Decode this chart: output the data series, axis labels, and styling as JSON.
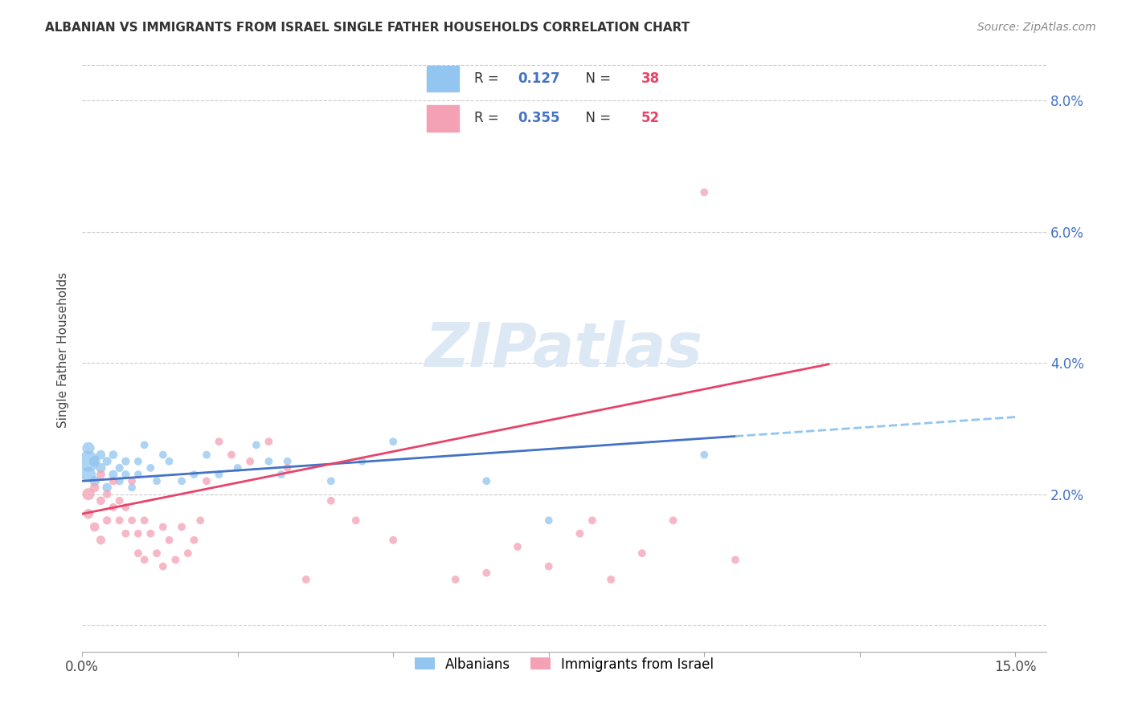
{
  "title": "ALBANIAN VS IMMIGRANTS FROM ISRAEL SINGLE FATHER HOUSEHOLDS CORRELATION CHART",
  "source": "Source: ZipAtlas.com",
  "ylabel": "Single Father Households",
  "xlim": [
    0.0,
    0.155
  ],
  "ylim": [
    -0.004,
    0.088
  ],
  "xticks": [
    0.0,
    0.025,
    0.05,
    0.075,
    0.1,
    0.125,
    0.15
  ],
  "xticklabels": [
    "0.0%",
    "",
    "",
    "",
    "",
    "",
    "15.0%"
  ],
  "yticks": [
    0.0,
    0.02,
    0.04,
    0.06,
    0.08
  ],
  "yticklabels_right": [
    "",
    "2.0%",
    "4.0%",
    "6.0%",
    "8.0%"
  ],
  "legend_label1": "Albanians",
  "legend_label2": "Immigrants from Israel",
  "R1": "0.127",
  "N1": "38",
  "R2": "0.355",
  "N2": "52",
  "color_blue": "#92C5F0",
  "color_pink": "#F4A0B5",
  "color_trendline_blue": "#4472C4",
  "color_trendline_pink": "#E8436A",
  "watermark": "ZIPatlas",
  "albanian_x": [
    0.001,
    0.001,
    0.001,
    0.002,
    0.002,
    0.003,
    0.003,
    0.004,
    0.004,
    0.005,
    0.005,
    0.006,
    0.006,
    0.007,
    0.007,
    0.008,
    0.009,
    0.009,
    0.01,
    0.011,
    0.012,
    0.013,
    0.014,
    0.016,
    0.018,
    0.02,
    0.022,
    0.025,
    0.028,
    0.03,
    0.032,
    0.033,
    0.04,
    0.045,
    0.05,
    0.065,
    0.075,
    0.1
  ],
  "albanian_y": [
    0.025,
    0.023,
    0.027,
    0.025,
    0.022,
    0.024,
    0.026,
    0.021,
    0.025,
    0.023,
    0.026,
    0.024,
    0.022,
    0.025,
    0.023,
    0.021,
    0.025,
    0.023,
    0.0275,
    0.024,
    0.022,
    0.026,
    0.025,
    0.022,
    0.023,
    0.026,
    0.023,
    0.024,
    0.0275,
    0.025,
    0.023,
    0.025,
    0.022,
    0.025,
    0.028,
    0.022,
    0.016,
    0.026
  ],
  "albanian_sizes": [
    350,
    180,
    120,
    100,
    80,
    80,
    70,
    70,
    65,
    65,
    60,
    55,
    55,
    55,
    55,
    50,
    50,
    50,
    50,
    50,
    50,
    50,
    50,
    50,
    50,
    50,
    50,
    50,
    50,
    50,
    50,
    50,
    50,
    50,
    50,
    50,
    50,
    50
  ],
  "israel_x": [
    0.001,
    0.001,
    0.002,
    0.002,
    0.003,
    0.003,
    0.003,
    0.004,
    0.004,
    0.005,
    0.005,
    0.006,
    0.006,
    0.007,
    0.007,
    0.008,
    0.008,
    0.009,
    0.009,
    0.01,
    0.01,
    0.011,
    0.012,
    0.013,
    0.013,
    0.014,
    0.015,
    0.016,
    0.017,
    0.018,
    0.019,
    0.02,
    0.022,
    0.024,
    0.027,
    0.03,
    0.033,
    0.036,
    0.04,
    0.044,
    0.05,
    0.06,
    0.065,
    0.07,
    0.075,
    0.08,
    0.085,
    0.09,
    0.095,
    0.1,
    0.105,
    0.082
  ],
  "israel_y": [
    0.02,
    0.017,
    0.015,
    0.021,
    0.013,
    0.019,
    0.023,
    0.016,
    0.02,
    0.018,
    0.022,
    0.016,
    0.019,
    0.014,
    0.018,
    0.022,
    0.016,
    0.014,
    0.011,
    0.01,
    0.016,
    0.014,
    0.011,
    0.015,
    0.009,
    0.013,
    0.01,
    0.015,
    0.011,
    0.013,
    0.016,
    0.022,
    0.028,
    0.026,
    0.025,
    0.028,
    0.024,
    0.007,
    0.019,
    0.016,
    0.013,
    0.007,
    0.008,
    0.012,
    0.009,
    0.014,
    0.007,
    0.011,
    0.016,
    0.066,
    0.01,
    0.016
  ],
  "israel_sizes": [
    120,
    80,
    70,
    70,
    65,
    60,
    60,
    55,
    55,
    55,
    55,
    50,
    50,
    50,
    50,
    50,
    50,
    50,
    50,
    50,
    50,
    50,
    50,
    50,
    50,
    50,
    50,
    50,
    50,
    50,
    50,
    50,
    50,
    50,
    50,
    50,
    50,
    50,
    50,
    50,
    50,
    50,
    50,
    50,
    50,
    50,
    50,
    50,
    50,
    50,
    50,
    50
  ],
  "trend_blue_x0": 0.0,
  "trend_blue_x_solid_end": 0.105,
  "trend_blue_x_dash_end": 0.15,
  "trend_blue_y0": 0.022,
  "trend_blue_slope": 0.065,
  "trend_pink_x0": 0.0,
  "trend_pink_x_end": 0.12,
  "trend_pink_y0": 0.017,
  "trend_pink_slope": 0.19
}
